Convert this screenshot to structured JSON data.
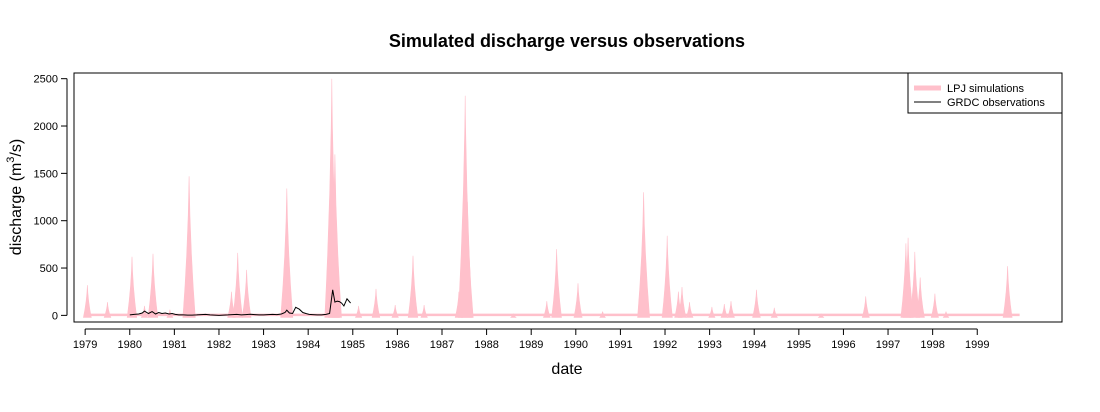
{
  "chart_data": {
    "type": "area",
    "title": "Simulated discharge versus observations",
    "xlabel": "date",
    "ylabel_main": "discharge (m",
    "ylabel_sup": "3",
    "ylabel_end": "/s)",
    "xlim": [
      1978.75,
      2000.9
    ],
    "ylim": [
      -70,
      2560
    ],
    "x_ticks": [
      1979,
      1980,
      1981,
      1982,
      1983,
      1984,
      1985,
      1986,
      1987,
      1988,
      1989,
      1990,
      1991,
      1992,
      1993,
      1994,
      1995,
      1996,
      1997,
      1998,
      1999
    ],
    "x_tick_labels": [
      "1979",
      "1980",
      "1981",
      "1982",
      "1983",
      "1984",
      "1985",
      "1986",
      "1987",
      "1988",
      "1989",
      "1990",
      "1991",
      "1992",
      "1993",
      "1994",
      "1995",
      "1996",
      "1997",
      "1998",
      "1999"
    ],
    "y_ticks": [
      0,
      500,
      1000,
      1500,
      2000,
      2500
    ],
    "y_tick_labels": [
      "0",
      "500",
      "1000",
      "1500",
      "2000",
      "2500"
    ],
    "grid": false,
    "legend_position": "top-right",
    "series": [
      {
        "name": "LPJ simulations",
        "color": "#ffc0cb",
        "style": "filled-area",
        "peaks": [
          [
            1979.05,
            320
          ],
          [
            1979.5,
            140
          ],
          [
            1980.05,
            620
          ],
          [
            1980.33,
            100
          ],
          [
            1980.52,
            650
          ],
          [
            1980.9,
            60
          ],
          [
            1981.33,
            1470
          ],
          [
            1982.28,
            250
          ],
          [
            1982.42,
            660
          ],
          [
            1982.62,
            480
          ],
          [
            1983.52,
            1340
          ],
          [
            1984.53,
            2500
          ],
          [
            1984.6,
            1700
          ],
          [
            1984.62,
            250
          ],
          [
            1985.13,
            100
          ],
          [
            1985.52,
            280
          ],
          [
            1985.95,
            110
          ],
          [
            1986.35,
            630
          ],
          [
            1986.6,
            110
          ],
          [
            1987.38,
            250
          ],
          [
            1987.52,
            2320
          ],
          [
            1987.57,
            1200
          ],
          [
            1988.6,
            20
          ],
          [
            1989.35,
            150
          ],
          [
            1989.57,
            700
          ],
          [
            1990.05,
            340
          ],
          [
            1990.6,
            40
          ],
          [
            1991.52,
            1300
          ],
          [
            1992.05,
            840
          ],
          [
            1992.3,
            250
          ],
          [
            1992.38,
            300
          ],
          [
            1992.55,
            140
          ],
          [
            1993.05,
            90
          ],
          [
            1993.33,
            120
          ],
          [
            1993.48,
            150
          ],
          [
            1994.05,
            270
          ],
          [
            1994.45,
            80
          ],
          [
            1995.5,
            20
          ],
          [
            1996.5,
            200
          ],
          [
            1997.4,
            760
          ],
          [
            1997.45,
            820
          ],
          [
            1997.6,
            670
          ],
          [
            1997.72,
            400
          ],
          [
            1998.05,
            230
          ],
          [
            1998.3,
            40
          ],
          [
            1999.68,
            520
          ]
        ]
      },
      {
        "name": "GRDC observations",
        "color": "#000000",
        "style": "line",
        "x": [
          1980.0,
          1980.1,
          1980.2,
          1980.28,
          1980.33,
          1980.42,
          1980.5,
          1980.58,
          1980.65,
          1980.72,
          1980.8,
          1980.88,
          1980.95,
          1981.02,
          1981.1,
          1981.2,
          1981.3,
          1981.4,
          1981.5,
          1981.6,
          1981.7,
          1981.8,
          1981.9,
          1982.0,
          1982.1,
          1982.2,
          1982.3,
          1982.4,
          1982.5,
          1982.6,
          1982.7,
          1982.8,
          1982.9,
          1983.0,
          1983.1,
          1983.2,
          1983.3,
          1983.4,
          1983.48,
          1983.52,
          1983.58,
          1983.65,
          1983.72,
          1983.8,
          1983.88,
          1983.95,
          1984.02,
          1984.1,
          1984.2,
          1984.3,
          1984.4,
          1984.48,
          1984.55,
          1984.6,
          1984.65,
          1984.7,
          1984.75,
          1984.8,
          1984.87,
          1984.95
        ],
        "values": [
          5,
          10,
          15,
          25,
          45,
          20,
          40,
          15,
          30,
          20,
          25,
          15,
          20,
          10,
          5,
          5,
          3,
          3,
          5,
          8,
          10,
          5,
          3,
          0,
          3,
          5,
          8,
          10,
          5,
          8,
          12,
          8,
          5,
          5,
          8,
          10,
          8,
          15,
          30,
          55,
          25,
          20,
          85,
          65,
          30,
          20,
          10,
          8,
          5,
          5,
          10,
          20,
          270,
          140,
          150,
          145,
          130,
          100,
          175,
          130
        ]
      }
    ]
  }
}
